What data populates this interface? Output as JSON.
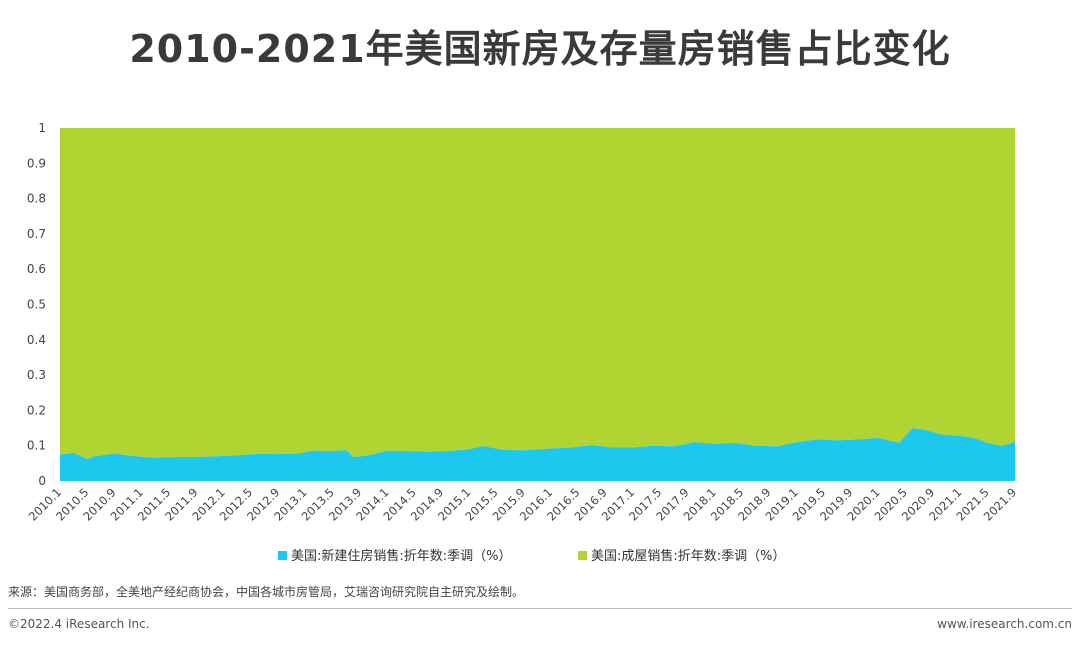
{
  "title": "2010-2021年美国新房及存量房销售占比变化",
  "source": "来源：美国商务部，全美地产经纪商协会，中国各城市房管局，艾瑞咨询研究院自主研究及绘制。",
  "copyright": "©2022.4 iResearch Inc.",
  "website": "www.iresearch.com.cn",
  "colors": {
    "new_homes": "#1dc8ee",
    "existing_homes": "#b1d433",
    "axis_text": "#444444"
  },
  "chart_data": {
    "type": "area",
    "stacked": true,
    "x_tick_labels": [
      "2010.1",
      "2010.5",
      "2010.9",
      "2011.1",
      "2011.5",
      "2011.9",
      "2012.1",
      "2012.5",
      "2012.9",
      "2013.1",
      "2013.5",
      "2013.9",
      "2014.1",
      "2014.5",
      "2014.9",
      "2015.1",
      "2015.5",
      "2015.9",
      "2016.1",
      "2016.5",
      "2016.9",
      "2017.1",
      "2017.5",
      "2017.9",
      "2018.1",
      "2018.5",
      "2018.9",
      "2019.1",
      "2019.5",
      "2019.9",
      "2020.1",
      "2020.5",
      "2020.9",
      "2021.1",
      "2021.5",
      "2021.9"
    ],
    "y_ticks": [
      "0",
      "0.1",
      "0.2",
      "0.3",
      "0.4",
      "0.5",
      "0.6",
      "0.7",
      "0.8",
      "0.9",
      "1"
    ],
    "ylim": [
      0,
      1
    ],
    "x_range": [
      "2010.1",
      "2021.9"
    ],
    "legend_position": "bottom",
    "series": [
      {
        "name": "美国:新建住房销售:折年数:季调（%）",
        "values": [
          {
            "x": "2010.1",
            "y": 0.075
          },
          {
            "x": "2010.3",
            "y": 0.08
          },
          {
            "x": "2010.5",
            "y": 0.062
          },
          {
            "x": "2010.6",
            "y": 0.07
          },
          {
            "x": "2010.8",
            "y": 0.075
          },
          {
            "x": "2010.9",
            "y": 0.078
          },
          {
            "x": "2010.12",
            "y": 0.07
          },
          {
            "x": "2011.3",
            "y": 0.066
          },
          {
            "x": "2011.6",
            "y": 0.068
          },
          {
            "x": "2011.9",
            "y": 0.068
          },
          {
            "x": "2011.12",
            "y": 0.07
          },
          {
            "x": "2012.3",
            "y": 0.073
          },
          {
            "x": "2012.6",
            "y": 0.077
          },
          {
            "x": "2012.9",
            "y": 0.076
          },
          {
            "x": "2012.12",
            "y": 0.078
          },
          {
            "x": "2013.2",
            "y": 0.086
          },
          {
            "x": "2013.5",
            "y": 0.085
          },
          {
            "x": "2013.7",
            "y": 0.087
          },
          {
            "x": "2013.8",
            "y": 0.068
          },
          {
            "x": "2013.10",
            "y": 0.072
          },
          {
            "x": "2014.1",
            "y": 0.086
          },
          {
            "x": "2014.4",
            "y": 0.085
          },
          {
            "x": "2014.7",
            "y": 0.083
          },
          {
            "x": "2014.10",
            "y": 0.085
          },
          {
            "x": "2015.1",
            "y": 0.09
          },
          {
            "x": "2015.3",
            "y": 0.099
          },
          {
            "x": "2015.6",
            "y": 0.088
          },
          {
            "x": "2015.9",
            "y": 0.087
          },
          {
            "x": "2016.1",
            "y": 0.092
          },
          {
            "x": "2016.4",
            "y": 0.095
          },
          {
            "x": "2016.7",
            "y": 0.102
          },
          {
            "x": "2016.10",
            "y": 0.095
          },
          {
            "x": "2017.1",
            "y": 0.095
          },
          {
            "x": "2017.4",
            "y": 0.1
          },
          {
            "x": "2017.7",
            "y": 0.098
          },
          {
            "x": "2017.10",
            "y": 0.11
          },
          {
            "x": "2018.1",
            "y": 0.105
          },
          {
            "x": "2018.4",
            "y": 0.108
          },
          {
            "x": "2018.7",
            "y": 0.1
          },
          {
            "x": "2018.10",
            "y": 0.098
          },
          {
            "x": "2019.1",
            "y": 0.11
          },
          {
            "x": "2019.4",
            "y": 0.118
          },
          {
            "x": "2019.7",
            "y": 0.115
          },
          {
            "x": "2019.10",
            "y": 0.118
          },
          {
            "x": "2020.1",
            "y": 0.122
          },
          {
            "x": "2020.4",
            "y": 0.108
          },
          {
            "x": "2020.6",
            "y": 0.15
          },
          {
            "x": "2020.8",
            "y": 0.145
          },
          {
            "x": "2020.10",
            "y": 0.132
          },
          {
            "x": "2021.1",
            "y": 0.128
          },
          {
            "x": "2021.3",
            "y": 0.122
          },
          {
            "x": "2021.5",
            "y": 0.108
          },
          {
            "x": "2021.7",
            "y": 0.1
          },
          {
            "x": "2021.8",
            "y": 0.104
          },
          {
            "x": "2021.9",
            "y": 0.112
          },
          {
            "x": "2021.10",
            "y": 0.125
          }
        ]
      },
      {
        "name": "美国:成屋销售:折年数:季调（%）",
        "values": "1 minus 美国:新建住房销售 share (stacked to 1)"
      }
    ]
  }
}
